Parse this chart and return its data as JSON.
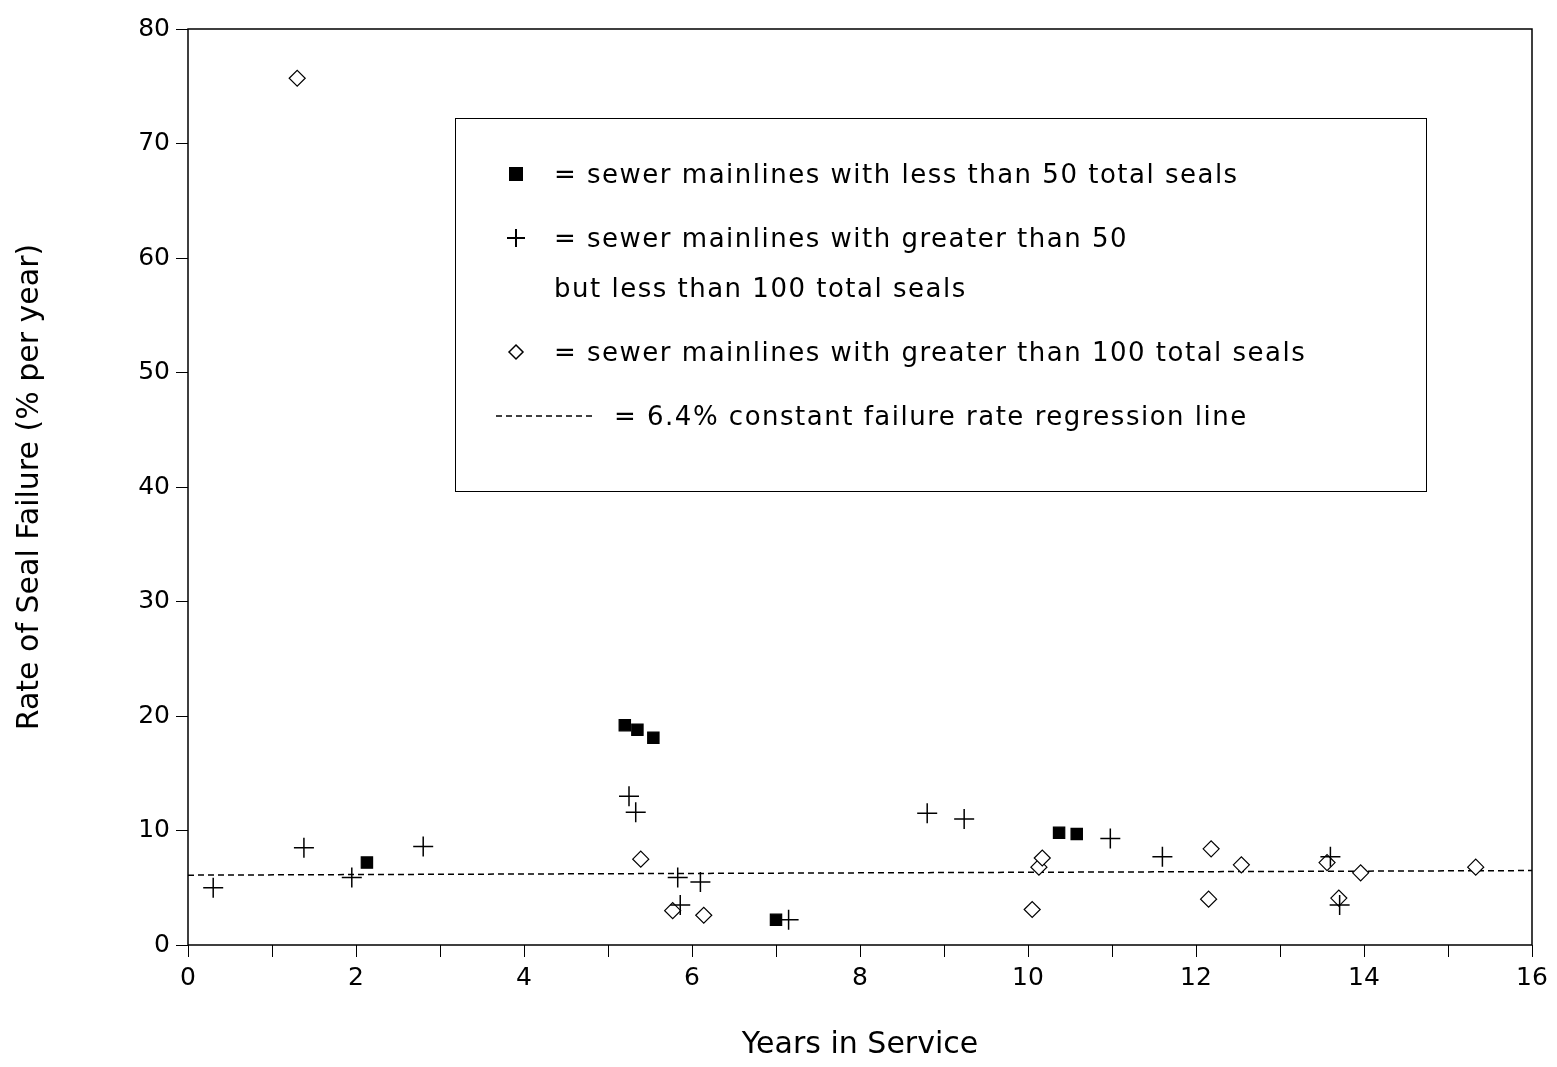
{
  "chart_data": {
    "type": "scatter",
    "xlabel": "Years in Service",
    "ylabel": "Rate of Seal Failure (% per year)",
    "xlim": [
      0,
      16
    ],
    "ylim": [
      0,
      80
    ],
    "xticks": [
      0,
      {
        "value": 1,
        "label": null
      },
      2,
      {
        "value": 3,
        "label": null
      },
      4,
      {
        "value": 5,
        "label": null
      },
      6,
      {
        "value": 7,
        "label": null
      },
      8,
      {
        "value": 9,
        "label": null
      },
      10,
      {
        "value": 11,
        "label": null
      },
      12,
      {
        "value": 13,
        "label": null
      },
      14,
      {
        "value": 15,
        "label": null
      },
      16
    ],
    "yticks": [
      0,
      10,
      20,
      30,
      40,
      50,
      60,
      70,
      80
    ],
    "grid": false,
    "legend": "top right",
    "series": [
      {
        "name": "= sewer mainlines with less than 50 total seals",
        "color": "#000000",
        "marker": "square",
        "x": [
          2.13,
          5.2,
          5.35,
          5.54,
          7.0,
          10.37,
          10.58
        ],
        "values": [
          7.2,
          19.2,
          18.8,
          18.1,
          2.2,
          9.8,
          9.7
        ]
      },
      {
        "name": "= sewer mainlines with greater than 50\nbut less than 100 total seals",
        "color": "#000000",
        "marker": "cross",
        "x": [
          0.3,
          1.38,
          1.95,
          2.8,
          5.25,
          5.33,
          5.83,
          5.86,
          6.1,
          7.15,
          8.8,
          9.24,
          10.98,
          11.6,
          13.6,
          13.71
        ],
        "values": [
          5.0,
          8.5,
          5.9,
          8.6,
          13.0,
          11.6,
          5.9,
          3.5,
          5.5,
          2.2,
          11.5,
          11.0,
          9.3,
          7.7,
          7.7,
          3.5
        ]
      },
      {
        "name": "= sewer mainlines with greater than 100 total seals",
        "color": "#000000",
        "marker": "diamond",
        "x": [
          1.3,
          5.39,
          5.77,
          6.14,
          10.05,
          10.13,
          10.17,
          12.18,
          12.15,
          12.54,
          13.56,
          13.7,
          13.96,
          15.33
        ],
        "values": [
          75.7,
          7.5,
          3.0,
          2.6,
          3.1,
          6.8,
          7.6,
          8.4,
          4.0,
          7.0,
          7.2,
          4.1,
          6.3,
          6.8
        ]
      },
      {
        "name": "= 6.4% constant failure rate regression line",
        "type": "line",
        "color": "#000000",
        "marker": "none",
        "line_style": "dashed",
        "x": [
          0,
          16
        ],
        "values": [
          6.1,
          6.5
        ]
      }
    ]
  }
}
